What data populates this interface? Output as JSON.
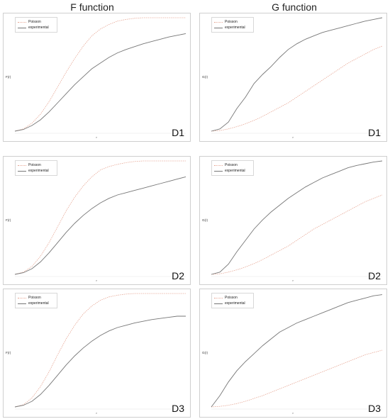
{
  "column_titles": [
    "F function",
    "G function"
  ],
  "legend": {
    "poisson": "Poisson",
    "experimental": "experimental"
  },
  "colors": {
    "poisson": "#e7a896",
    "experimental": "#777777",
    "frame": "#cfcfcf"
  },
  "y_labels": {
    "F": "F(r)",
    "G": "G(r)"
  },
  "x_label": "r",
  "chart_data": [
    {
      "id": "F-D1",
      "type": "line",
      "label": "D1",
      "ylabel": "F(r)",
      "xlabel": "r",
      "ylim": [
        0,
        1
      ],
      "x": [
        0,
        0.05,
        0.1,
        0.15,
        0.2,
        0.25,
        0.3,
        0.35,
        0.4,
        0.45,
        0.5,
        0.55,
        0.6,
        0.65,
        0.7,
        0.75,
        0.8,
        0.85,
        0.9,
        0.95,
        1
      ],
      "series": [
        {
          "name": "Poisson",
          "values": [
            0,
            0.02,
            0.07,
            0.15,
            0.26,
            0.39,
            0.52,
            0.64,
            0.75,
            0.84,
            0.9,
            0.94,
            0.97,
            0.985,
            0.995,
            1,
            1,
            1,
            1,
            1,
            1
          ]
        },
        {
          "name": "experimental",
          "values": [
            0,
            0.015,
            0.05,
            0.1,
            0.17,
            0.25,
            0.33,
            0.41,
            0.48,
            0.55,
            0.6,
            0.65,
            0.69,
            0.72,
            0.745,
            0.77,
            0.79,
            0.81,
            0.83,
            0.845,
            0.86
          ]
        }
      ]
    },
    {
      "id": "G-D1",
      "type": "line",
      "label": "D1",
      "ylabel": "G(r)",
      "xlabel": "r",
      "ylim": [
        0,
        1
      ],
      "x": [
        0,
        0.05,
        0.1,
        0.15,
        0.2,
        0.25,
        0.3,
        0.35,
        0.4,
        0.45,
        0.5,
        0.55,
        0.6,
        0.65,
        0.7,
        0.75,
        0.8,
        0.85,
        0.9,
        0.95,
        1
      ],
      "series": [
        {
          "name": "Poisson",
          "values": [
            0,
            0.005,
            0.02,
            0.04,
            0.065,
            0.095,
            0.13,
            0.17,
            0.21,
            0.25,
            0.3,
            0.35,
            0.4,
            0.45,
            0.5,
            0.55,
            0.6,
            0.64,
            0.68,
            0.72,
            0.75
          ]
        },
        {
          "name": "experimental",
          "values": [
            0,
            0.02,
            0.08,
            0.2,
            0.3,
            0.42,
            0.5,
            0.57,
            0.65,
            0.72,
            0.77,
            0.81,
            0.84,
            0.87,
            0.89,
            0.91,
            0.93,
            0.95,
            0.97,
            0.985,
            1
          ]
        }
      ]
    },
    {
      "id": "F-D2",
      "type": "line",
      "label": "D2",
      "ylabel": "F(r)",
      "xlabel": "r",
      "ylim": [
        0,
        1
      ],
      "x": [
        0,
        0.05,
        0.1,
        0.15,
        0.2,
        0.25,
        0.3,
        0.35,
        0.4,
        0.45,
        0.5,
        0.55,
        0.6,
        0.65,
        0.7,
        0.75,
        0.8,
        0.85,
        0.9,
        0.95,
        1
      ],
      "series": [
        {
          "name": "Poisson",
          "values": [
            0,
            0.02,
            0.07,
            0.16,
            0.28,
            0.42,
            0.56,
            0.68,
            0.78,
            0.86,
            0.92,
            0.95,
            0.97,
            0.985,
            0.995,
            1,
            1,
            1,
            1,
            1,
            1
          ]
        },
        {
          "name": "experimental",
          "values": [
            0,
            0.015,
            0.05,
            0.11,
            0.19,
            0.28,
            0.37,
            0.45,
            0.52,
            0.58,
            0.63,
            0.67,
            0.7,
            0.72,
            0.74,
            0.76,
            0.78,
            0.8,
            0.82,
            0.84,
            0.86
          ]
        }
      ]
    },
    {
      "id": "G-D2",
      "type": "line",
      "label": "D2",
      "ylabel": "G(r)",
      "xlabel": "r",
      "ylim": [
        0,
        1
      ],
      "x": [
        0,
        0.05,
        0.1,
        0.15,
        0.2,
        0.25,
        0.3,
        0.35,
        0.4,
        0.45,
        0.5,
        0.55,
        0.6,
        0.65,
        0.7,
        0.75,
        0.8,
        0.85,
        0.9,
        0.95,
        1
      ],
      "series": [
        {
          "name": "Poisson",
          "values": [
            0,
            0.005,
            0.02,
            0.04,
            0.065,
            0.095,
            0.13,
            0.17,
            0.21,
            0.25,
            0.3,
            0.35,
            0.4,
            0.44,
            0.48,
            0.52,
            0.56,
            0.6,
            0.64,
            0.67,
            0.7
          ]
        },
        {
          "name": "experimental",
          "values": [
            0,
            0.02,
            0.09,
            0.2,
            0.3,
            0.4,
            0.48,
            0.55,
            0.61,
            0.67,
            0.72,
            0.77,
            0.81,
            0.85,
            0.88,
            0.91,
            0.94,
            0.96,
            0.975,
            0.99,
            1
          ]
        }
      ]
    },
    {
      "id": "F-D3",
      "type": "line",
      "label": "D3",
      "ylabel": "F(r)",
      "xlabel": "r",
      "ylim": [
        0,
        1
      ],
      "x": [
        0,
        0.05,
        0.1,
        0.15,
        0.2,
        0.25,
        0.3,
        0.35,
        0.4,
        0.45,
        0.5,
        0.55,
        0.6,
        0.65,
        0.7,
        0.75,
        0.8,
        0.85,
        0.9,
        0.95,
        1
      ],
      "series": [
        {
          "name": "Poisson",
          "values": [
            0,
            0.02,
            0.08,
            0.18,
            0.31,
            0.46,
            0.6,
            0.72,
            0.82,
            0.89,
            0.94,
            0.97,
            0.985,
            0.995,
            1,
            1,
            1,
            1,
            1,
            1,
            1
          ]
        },
        {
          "name": "experimental",
          "values": [
            0,
            0.015,
            0.05,
            0.11,
            0.19,
            0.28,
            0.37,
            0.45,
            0.52,
            0.58,
            0.63,
            0.67,
            0.7,
            0.72,
            0.74,
            0.755,
            0.77,
            0.78,
            0.79,
            0.8,
            0.8
          ]
        }
      ]
    },
    {
      "id": "G-D3",
      "type": "line",
      "label": "D3",
      "ylabel": "G(r)",
      "xlabel": "r",
      "ylim": [
        0,
        1
      ],
      "x": [
        0,
        0.05,
        0.1,
        0.15,
        0.2,
        0.25,
        0.3,
        0.35,
        0.4,
        0.45,
        0.5,
        0.55,
        0.6,
        0.65,
        0.7,
        0.75,
        0.8,
        0.85,
        0.9,
        0.95,
        1
      ],
      "series": [
        {
          "name": "Poisson",
          "values": [
            0,
            0.005,
            0.015,
            0.03,
            0.05,
            0.075,
            0.1,
            0.13,
            0.16,
            0.19,
            0.22,
            0.25,
            0.28,
            0.31,
            0.34,
            0.37,
            0.4,
            0.43,
            0.46,
            0.48,
            0.5
          ]
        },
        {
          "name": "experimental",
          "values": [
            0,
            0.1,
            0.22,
            0.32,
            0.4,
            0.47,
            0.54,
            0.6,
            0.66,
            0.7,
            0.74,
            0.77,
            0.8,
            0.83,
            0.86,
            0.89,
            0.92,
            0.94,
            0.96,
            0.98,
            0.99
          ]
        }
      ]
    }
  ]
}
